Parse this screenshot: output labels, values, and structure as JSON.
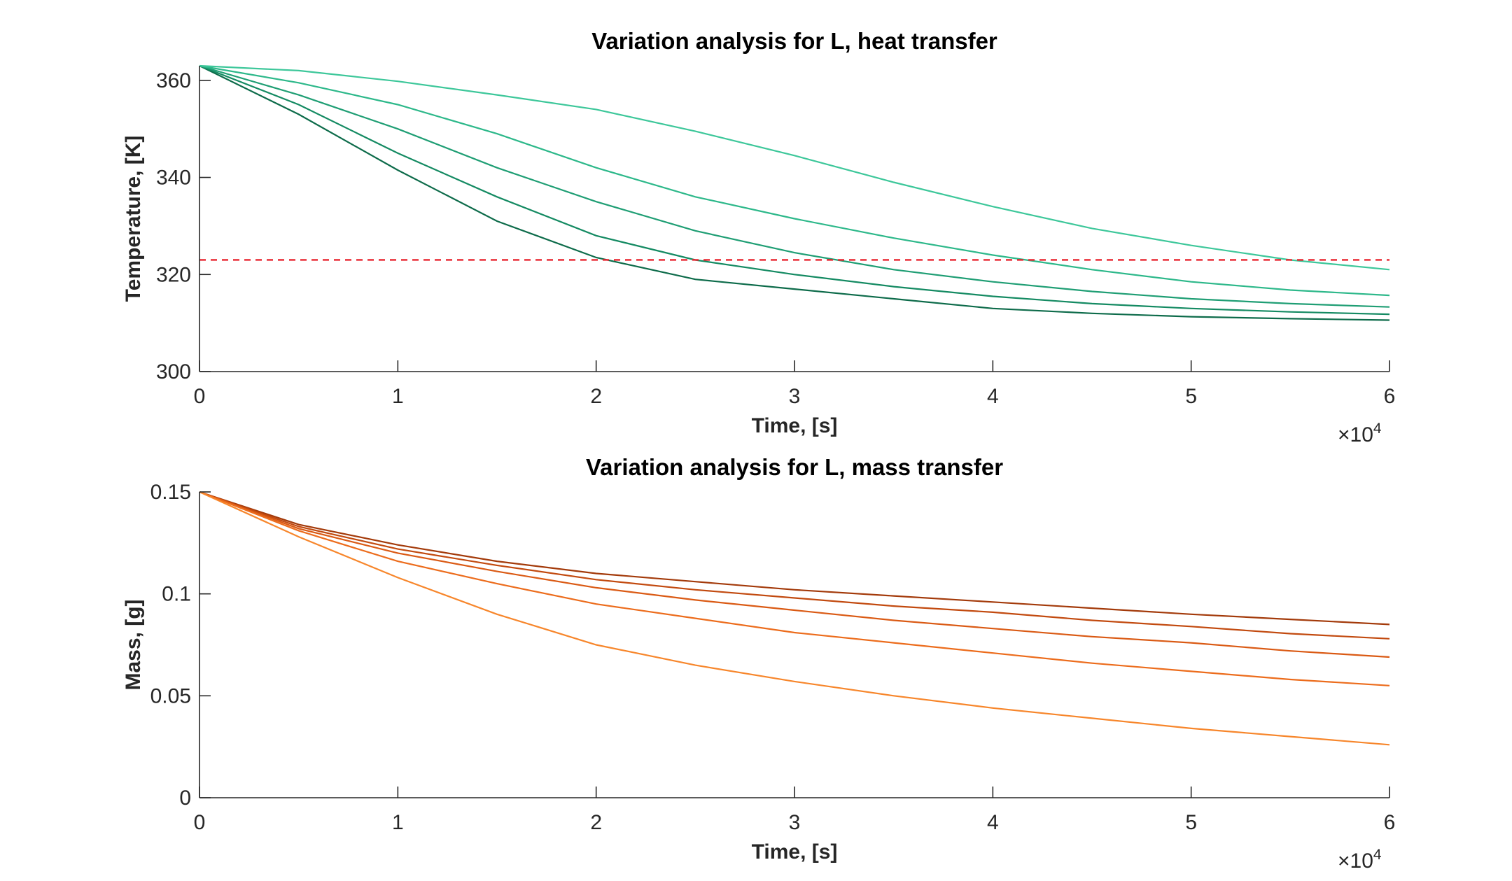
{
  "chart_data": [
    {
      "type": "line",
      "title": "Variation analysis for L, heat transfer",
      "xlabel": "Time, [s]",
      "ylabel": "Temperature, [K]",
      "x_exponent_label": "×10",
      "x_exponent_power": "4",
      "xlim": [
        0,
        60000
      ],
      "ylim": [
        300,
        363
      ],
      "xticks": [
        0,
        10000,
        20000,
        30000,
        40000,
        50000,
        60000
      ],
      "xtick_labels": [
        "0",
        "1",
        "2",
        "3",
        "4",
        "5",
        "6"
      ],
      "yticks": [
        300,
        320,
        340,
        360
      ],
      "ytick_labels": [
        "300",
        "320",
        "340",
        "360"
      ],
      "grid": false,
      "x": [
        0,
        5000,
        10000,
        15000,
        20000,
        25000,
        30000,
        35000,
        40000,
        45000,
        50000,
        55000,
        60000
      ],
      "series": [
        {
          "color": "#0d6b4a",
          "values": [
            363,
            353,
            341.5,
            331,
            323.5,
            319,
            317,
            315,
            313,
            312,
            311.3,
            310.9,
            310.6
          ]
        },
        {
          "color": "#148a62",
          "values": [
            363,
            355,
            345,
            336,
            328,
            323,
            320,
            317.5,
            315.5,
            314,
            313,
            312.3,
            311.8
          ]
        },
        {
          "color": "#1f9e74",
          "values": [
            363,
            357,
            350,
            342,
            335,
            329,
            324.5,
            321,
            318.5,
            316.5,
            315,
            314,
            313.3
          ]
        },
        {
          "color": "#2db88a",
          "values": [
            363,
            359.5,
            355,
            349,
            342,
            336,
            331.5,
            327.5,
            324,
            321,
            318.5,
            316.8,
            315.7
          ]
        },
        {
          "color": "#3dc79a",
          "values": [
            363,
            362,
            359.8,
            357,
            354,
            349.5,
            344.5,
            339,
            334,
            329.5,
            326,
            323,
            321
          ]
        }
      ],
      "reference_line": {
        "y": 323,
        "style": "dashed",
        "color": "#e8232d"
      }
    },
    {
      "type": "line",
      "title": "Variation analysis for L, mass transfer",
      "xlabel": "Time, [s]",
      "ylabel": "Mass, [g]",
      "x_exponent_label": "×10",
      "x_exponent_power": "4",
      "xlim": [
        0,
        60000
      ],
      "ylim": [
        0,
        0.15
      ],
      "xticks": [
        0,
        10000,
        20000,
        30000,
        40000,
        50000,
        60000
      ],
      "xtick_labels": [
        "0",
        "1",
        "2",
        "3",
        "4",
        "5",
        "6"
      ],
      "yticks": [
        0,
        0.05,
        0.1,
        0.15
      ],
      "ytick_labels": [
        "0",
        "0.05",
        "0.1",
        "0.15"
      ],
      "grid": false,
      "x": [
        0,
        5000,
        10000,
        15000,
        20000,
        25000,
        30000,
        35000,
        40000,
        45000,
        50000,
        55000,
        60000
      ],
      "series": [
        {
          "color": "#a33a0a",
          "values": [
            0.15,
            0.134,
            0.124,
            0.116,
            0.11,
            0.106,
            0.102,
            0.099,
            0.096,
            0.093,
            0.09,
            0.0875,
            0.085
          ]
        },
        {
          "color": "#c24a0f",
          "values": [
            0.15,
            0.133,
            0.122,
            0.114,
            0.107,
            0.102,
            0.098,
            0.094,
            0.091,
            0.087,
            0.084,
            0.0805,
            0.078
          ]
        },
        {
          "color": "#da5a14",
          "values": [
            0.15,
            0.132,
            0.12,
            0.111,
            0.103,
            0.097,
            0.092,
            0.087,
            0.083,
            0.079,
            0.076,
            0.072,
            0.069
          ]
        },
        {
          "color": "#ec6c1c",
          "values": [
            0.15,
            0.131,
            0.116,
            0.105,
            0.095,
            0.088,
            0.081,
            0.076,
            0.071,
            0.066,
            0.062,
            0.058,
            0.055
          ]
        },
        {
          "color": "#f7862b",
          "values": [
            0.15,
            0.128,
            0.108,
            0.09,
            0.075,
            0.065,
            0.057,
            0.05,
            0.044,
            0.039,
            0.034,
            0.03,
            0.026
          ]
        }
      ]
    }
  ]
}
